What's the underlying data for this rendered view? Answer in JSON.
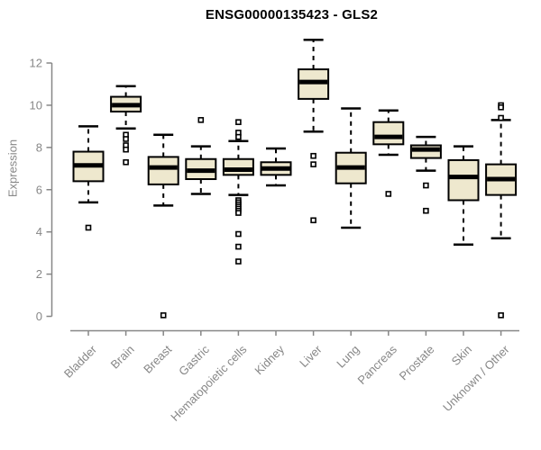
{
  "chart_data": {
    "type": "boxplot",
    "title": "ENSG00000135423 - GLS2",
    "ylabel": "Expression",
    "xlabel": "",
    "yticks": [
      0,
      2,
      4,
      6,
      8,
      10,
      12
    ],
    "ylim": [
      0,
      13.3
    ],
    "grid": false,
    "legend": "none",
    "xticklabel_rotation": 45,
    "categories": [
      "Bladder",
      "Brain",
      "Breast",
      "Gastric",
      "Hematopoietic cells",
      "Kidney",
      "Liver",
      "Lung",
      "Pancreas",
      "Prostate",
      "Skin",
      "Unknown / Other"
    ],
    "series": [
      {
        "category": "Bladder",
        "whisker_low": 5.4,
        "q1": 6.4,
        "median": 7.15,
        "q3": 7.8,
        "whisker_high": 9.0,
        "outliers": [
          4.2
        ]
      },
      {
        "category": "Brain",
        "whisker_low": 8.9,
        "q1": 9.7,
        "median": 10.0,
        "q3": 10.4,
        "whisker_high": 10.9,
        "outliers": [
          8.6,
          8.4,
          8.1,
          7.9,
          7.3
        ]
      },
      {
        "category": "Breast",
        "whisker_low": 5.25,
        "q1": 6.25,
        "median": 7.05,
        "q3": 7.55,
        "whisker_high": 8.6,
        "outliers": [
          0.05
        ]
      },
      {
        "category": "Gastric",
        "whisker_low": 5.8,
        "q1": 6.5,
        "median": 6.9,
        "q3": 7.45,
        "whisker_high": 8.05,
        "outliers": [
          9.3
        ]
      },
      {
        "category": "Hematopoietic cells",
        "whisker_low": 5.75,
        "q1": 6.7,
        "median": 6.95,
        "q3": 7.45,
        "whisker_high": 8.3,
        "outliers": [
          9.2,
          8.7,
          8.5,
          5.5,
          5.4,
          5.3,
          5.2,
          5.1,
          5.0,
          4.9,
          3.9,
          3.3,
          2.6
        ]
      },
      {
        "category": "Kidney",
        "whisker_low": 6.2,
        "q1": 6.7,
        "median": 7.0,
        "q3": 7.3,
        "whisker_high": 7.95,
        "outliers": []
      },
      {
        "category": "Liver",
        "whisker_low": 8.75,
        "q1": 10.3,
        "median": 11.1,
        "q3": 11.7,
        "whisker_high": 13.1,
        "outliers": [
          7.6,
          7.2,
          4.55
        ]
      },
      {
        "category": "Lung",
        "whisker_low": 4.2,
        "q1": 6.3,
        "median": 7.05,
        "q3": 7.75,
        "whisker_high": 9.85,
        "outliers": []
      },
      {
        "category": "Pancreas",
        "whisker_low": 7.65,
        "q1": 8.15,
        "median": 8.5,
        "q3": 9.2,
        "whisker_high": 9.75,
        "outliers": [
          5.8
        ]
      },
      {
        "category": "Prostate",
        "whisker_low": 6.9,
        "q1": 7.5,
        "median": 7.9,
        "q3": 8.1,
        "whisker_high": 8.5,
        "outliers": [
          6.2,
          5.0
        ]
      },
      {
        "category": "Skin",
        "whisker_low": 3.4,
        "q1": 5.5,
        "median": 6.6,
        "q3": 7.4,
        "whisker_high": 8.05,
        "outliers": []
      },
      {
        "category": "Unknown / Other",
        "whisker_low": 3.7,
        "q1": 5.75,
        "median": 6.5,
        "q3": 7.2,
        "whisker_high": 9.3,
        "outliers": [
          10.0,
          9.9,
          9.4,
          0.05
        ]
      }
    ],
    "colors": {
      "box_fill": "#EEE8CE",
      "box_border": "#000000",
      "median": "#000000",
      "whisker": "#000000",
      "outlier_stroke": "#000000",
      "outlier_fill": "#ffffff",
      "axis": "#878787",
      "title": "#000000",
      "background": "#ffffff"
    }
  }
}
